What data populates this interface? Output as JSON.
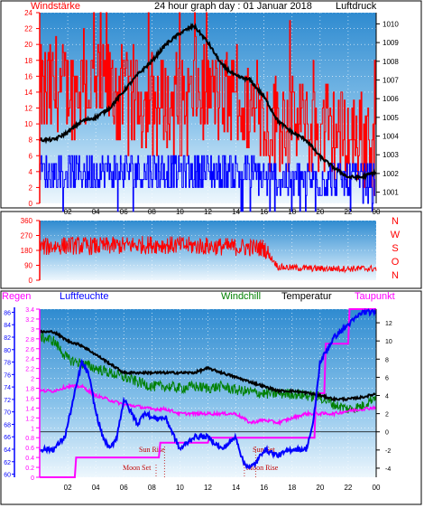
{
  "title": "24 hour graph day : 01 Januar 2018",
  "colors": {
    "wind": "#ff0000",
    "gust_blue": "#0000ff",
    "pressure": "#000000",
    "direction": "#ff0000",
    "rain": "#ff00ff",
    "humidity": "#0000ff",
    "windchill": "#008000",
    "temperature": "#000000",
    "dewpoint": "#ff00ff",
    "axis_red": "#ff0000",
    "axis_blue": "#0000ff",
    "axis_black": "#000000",
    "panel_top": "#d8ecf9",
    "panel_bottom": "#2f8bd0"
  },
  "chart_data": [
    {
      "type": "line",
      "title": "24 hour graph day : 01 Januar 2018",
      "left_label": "Windstärke",
      "right_label": "Luftdruck",
      "x_ticks": [
        "02",
        "04",
        "06",
        "08",
        "10",
        "12",
        "14",
        "16",
        "18",
        "20",
        "22",
        "00"
      ],
      "y_left_ticks": [
        0,
        2,
        4,
        6,
        8,
        10,
        12,
        14,
        16,
        18,
        20,
        22,
        24
      ],
      "y_right_ticks": [
        1001,
        1002,
        1003,
        1004,
        1005,
        1006,
        1007,
        1008,
        1009,
        1010
      ],
      "ylim_left": [
        0,
        24
      ],
      "ylim_right": [
        1000.4,
        1010.6
      ],
      "series": [
        {
          "hours": [
            0,
            1,
            2,
            3,
            4,
            5,
            6,
            7,
            8,
            9,
            10,
            11,
            12,
            13,
            14,
            15,
            16,
            17,
            18,
            19,
            20,
            21,
            22,
            23,
            24
          ],
          "values": [
            13,
            14,
            14,
            15,
            14,
            14,
            13,
            12,
            12,
            12,
            12,
            13,
            14,
            13,
            12,
            11,
            10,
            10,
            10,
            9,
            9,
            8,
            8,
            8,
            5
          ]
        },
        {
          "hours": [
            0,
            1,
            2,
            3,
            4,
            5,
            6,
            7,
            8,
            9,
            10,
            11,
            12,
            13,
            14,
            15,
            16,
            17,
            18,
            19,
            20,
            21,
            22,
            23,
            24
          ],
          "values": [
            4,
            4,
            4,
            4,
            4,
            4,
            4,
            4,
            4,
            4,
            4,
            4,
            4,
            4,
            4,
            4,
            3,
            3,
            3,
            3,
            3,
            3,
            3,
            3,
            2
          ]
        },
        {
          "hours": [
            0,
            1,
            2,
            3,
            4,
            5,
            6,
            7,
            8,
            9,
            10,
            11,
            12,
            13,
            14,
            15,
            16,
            17,
            18,
            19,
            20,
            21,
            22,
            23,
            24
          ],
          "values": [
            1003.8,
            1003.8,
            1004.2,
            1004.8,
            1005.0,
            1005.5,
            1006.4,
            1007.3,
            1008.0,
            1008.9,
            1009.5,
            1009.9,
            1009.0,
            1007.8,
            1007.2,
            1007.0,
            1006.1,
            1004.8,
            1004.2,
            1003.8,
            1002.9,
            1002.3,
            1001.8,
            1001.8,
            1002.1
          ]
        }
      ]
    },
    {
      "type": "line",
      "y_left_ticks": [
        0,
        90,
        180,
        270,
        360
      ],
      "right_letters": [
        "N",
        "W",
        "S",
        "O",
        "N"
      ],
      "ylim": [
        0,
        360
      ],
      "series": [
        {
          "hours": [
            0,
            2,
            4,
            6,
            8,
            10,
            12,
            14,
            16,
            17,
            18,
            20,
            22,
            24
          ],
          "values": [
            200,
            210,
            205,
            210,
            215,
            210,
            205,
            200,
            195,
            80,
            75,
            70,
            70,
            70
          ]
        }
      ]
    },
    {
      "type": "line",
      "labels": {
        "rain": "Regen",
        "humidity": "Luftfeuchte",
        "windchill": "Windchill",
        "temperature": "Temperatur",
        "dewpoint": "Taupunkt"
      },
      "y_rain_ticks": [
        "0",
        "0.2",
        "0.4",
        "0.6",
        "0.8",
        "1",
        "1.2",
        "1.4",
        "1.6",
        "1.8",
        "2",
        "2.2",
        "2.4",
        "2.6",
        "2.8",
        "3",
        "3.2",
        "3.4"
      ],
      "y_humidity_ticks": [
        60,
        62,
        64,
        66,
        68,
        70,
        72,
        74,
        76,
        78,
        80,
        82,
        84,
        86
      ],
      "y_temp_ticks": [
        -4,
        -2,
        0,
        2,
        4,
        6,
        8,
        10,
        12
      ],
      "x_ticks": [
        "02",
        "04",
        "06",
        "08",
        "10",
        "12",
        "14",
        "16",
        "18",
        "20",
        "22",
        "00"
      ],
      "ylim_rain": [
        0,
        3.4
      ],
      "ylim_humidity": [
        59.5,
        86.5
      ],
      "ylim_temp": [
        -5,
        13.5
      ],
      "annotations": [
        "Sun Rise",
        "Moon Set",
        "Sun Set",
        "Moon Rise"
      ],
      "series": [
        {
          "hours": [
            0,
            2.5,
            2.6,
            8.5,
            8.6,
            12.0,
            12.1,
            19.6,
            19.7,
            20.3,
            20.4,
            22.0,
            22.1,
            24
          ],
          "values": [
            0,
            0,
            0.4,
            0.4,
            0.7,
            0.7,
            0.8,
            0.8,
            1.7,
            1.7,
            2.7,
            2.7,
            3.4,
            3.4
          ]
        },
        {
          "hours": [
            0,
            1.0,
            1.8,
            2.4,
            3.0,
            3.5,
            4.0,
            4.5,
            5.0,
            5.5,
            6.0,
            6.5,
            7.0,
            7.5,
            8.0,
            9.0,
            10.0,
            11.0,
            12.0,
            13.0,
            14.0,
            14.5,
            15.0,
            15.5,
            16.0,
            17.0,
            18.0,
            19.0,
            19.5,
            20.0,
            20.5,
            21.0,
            22.0,
            23.0,
            24
          ],
          "values": [
            64,
            64,
            66,
            72,
            78,
            76,
            70,
            66,
            64,
            66,
            72,
            70,
            68,
            70,
            69,
            69,
            64,
            66,
            66,
            64,
            66,
            62,
            61,
            62,
            64,
            63,
            64,
            64,
            68,
            78,
            80,
            82,
            84,
            86,
            86
          ]
        },
        {
          "hours": [
            0,
            1,
            2,
            3,
            4,
            5,
            6,
            7,
            8,
            9,
            10,
            11,
            12,
            13,
            14,
            15,
            16,
            17,
            18,
            19,
            20,
            21,
            22,
            23,
            24
          ],
          "values": [
            10.5,
            10,
            8,
            7.5,
            7,
            6.5,
            6,
            5.5,
            5,
            5,
            4.8,
            5,
            4.8,
            5,
            4.6,
            4.4,
            4.2,
            4.2,
            4.2,
            4,
            3.8,
            3,
            2.5,
            2.8,
            4
          ]
        },
        {
          "hours": [
            0,
            1,
            2,
            3,
            4,
            5,
            6,
            7,
            8,
            9,
            10,
            11,
            12,
            13,
            14,
            15,
            16,
            17,
            18,
            19,
            20,
            21,
            22,
            23,
            24
          ],
          "values": [
            11,
            11,
            10,
            9.5,
            8.5,
            7.5,
            6.5,
            6.5,
            6.5,
            6.5,
            6.5,
            6.5,
            7,
            6.5,
            6,
            5.5,
            5,
            4.5,
            4.5,
            4.3,
            4,
            3.6,
            3.6,
            3.8,
            4.2
          ]
        },
        {
          "hours": [
            0,
            1,
            2,
            3,
            4,
            5,
            6,
            7,
            8,
            9,
            10,
            11,
            12,
            13,
            14,
            15,
            16,
            17,
            18,
            19,
            20,
            21,
            22,
            23,
            24
          ],
          "values": [
            4.5,
            4.5,
            5,
            5,
            4,
            3.5,
            3,
            2.8,
            2.5,
            2.5,
            2,
            2,
            2,
            2,
            2,
            1,
            1.3,
            1,
            1.5,
            2,
            2,
            2,
            2.3,
            2.5,
            2.7
          ]
        }
      ]
    }
  ]
}
